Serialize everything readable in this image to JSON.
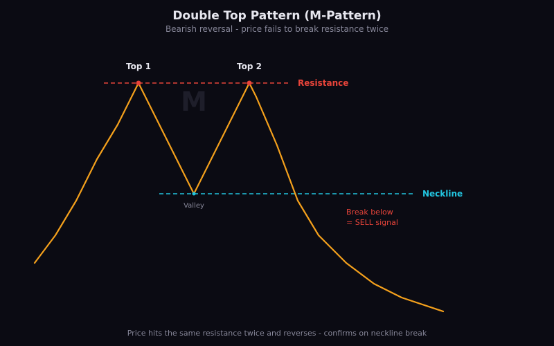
{
  "header": {
    "title": "Double Top Pattern (M-Pattern)",
    "subtitle": "Bearish reversal - price fails to break resistance twice"
  },
  "labels": {
    "top1": "Top 1",
    "top2": "Top 2",
    "resistance": "Resistance",
    "neckline": "Neckline",
    "watermark": "M",
    "valley": "Valley",
    "break_line1": "Break below",
    "break_line2": "= SELL signal"
  },
  "footer": {
    "caption": "Price hits the same resistance twice and reverses - confirms on neckline break"
  },
  "colors": {
    "background": "#0b0b13",
    "price_line": "#f5a11c",
    "resistance": "#e8443a",
    "neckline": "#22c5e0",
    "text": "#e6e6ee",
    "muted": "#868698"
  }
}
